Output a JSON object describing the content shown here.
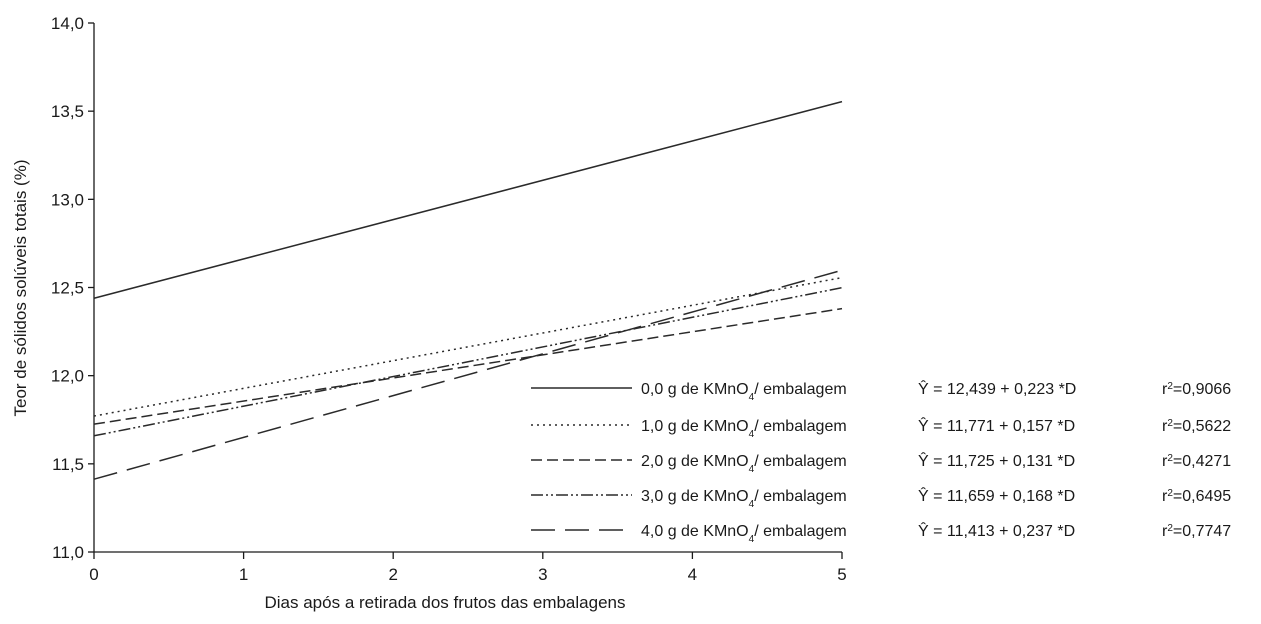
{
  "chart_data": {
    "type": "line",
    "title": "",
    "xlabel": "Dias após a retirada dos frutos das embalagens",
    "ylabel": "Teor de sólidos solúveis totais (%)",
    "xlim": [
      0,
      5
    ],
    "ylim": [
      11.0,
      14.0
    ],
    "x_ticks": [
      0,
      1,
      2,
      3,
      4,
      5
    ],
    "x_tick_labels": [
      "0",
      "1",
      "2",
      "3",
      "4",
      "5"
    ],
    "y_ticks": [
      11.0,
      11.5,
      12.0,
      12.5,
      13.0,
      13.5,
      14.0
    ],
    "y_tick_labels": [
      "11,0",
      "11,5",
      "12,0",
      "12,5",
      "13,0",
      "13,5",
      "14,0"
    ],
    "grid": false,
    "legend_position": "bottom-right",
    "series": [
      {
        "name": "0,0 g de KMnO4/ embalagem",
        "dose": "0,0",
        "equation": "Ŷ = 12,439 + 0,223 *D",
        "r2_label": "r",
        "r2_value": "=0,9066",
        "intercept": 12.439,
        "slope": 0.223,
        "x": [
          0,
          5
        ],
        "y": [
          12.439,
          13.554
        ],
        "style": "solid"
      },
      {
        "name": "1,0 g de KMnO4/ embalagem",
        "dose": "1,0",
        "equation": "Ŷ = 11,771 + 0,157 *D",
        "r2_label": "r",
        "r2_value": "=0,5622",
        "intercept": 11.771,
        "slope": 0.157,
        "x": [
          0,
          5
        ],
        "y": [
          11.771,
          12.556
        ],
        "style": "dotted"
      },
      {
        "name": "2,0 g de KMnO4/ embalagem",
        "dose": "2,0",
        "equation": "Ŷ = 11,725 + 0,131 *D",
        "r2_label": "r",
        "r2_value": "=0,4271",
        "intercept": 11.725,
        "slope": 0.131,
        "x": [
          0,
          5
        ],
        "y": [
          11.725,
          12.38
        ],
        "style": "dashed"
      },
      {
        "name": "3,0 g de KMnO4/ embalagem",
        "dose": "3,0",
        "equation": "Ŷ = 11,659 + 0,168 *D",
        "r2_label": "r",
        "r2_value": "=0,6495",
        "intercept": 11.659,
        "slope": 0.168,
        "x": [
          0,
          5
        ],
        "y": [
          11.659,
          12.499
        ],
        "style": "dash-dot-dot"
      },
      {
        "name": "4,0 g de KMnO4/ embalagem",
        "dose": "4,0",
        "equation": "Ŷ = 11,413 + 0,237 *D",
        "r2_label": "r",
        "r2_value": "=0,7747",
        "intercept": 11.413,
        "slope": 0.237,
        "x": [
          0,
          5
        ],
        "y": [
          11.413,
          12.598
        ],
        "style": "long-dash"
      }
    ],
    "legend_unit_prefix": " g de KMnO",
    "legend_unit_sub": "4",
    "legend_unit_suffix": "/ embalagem",
    "r2_superscript": "2"
  }
}
